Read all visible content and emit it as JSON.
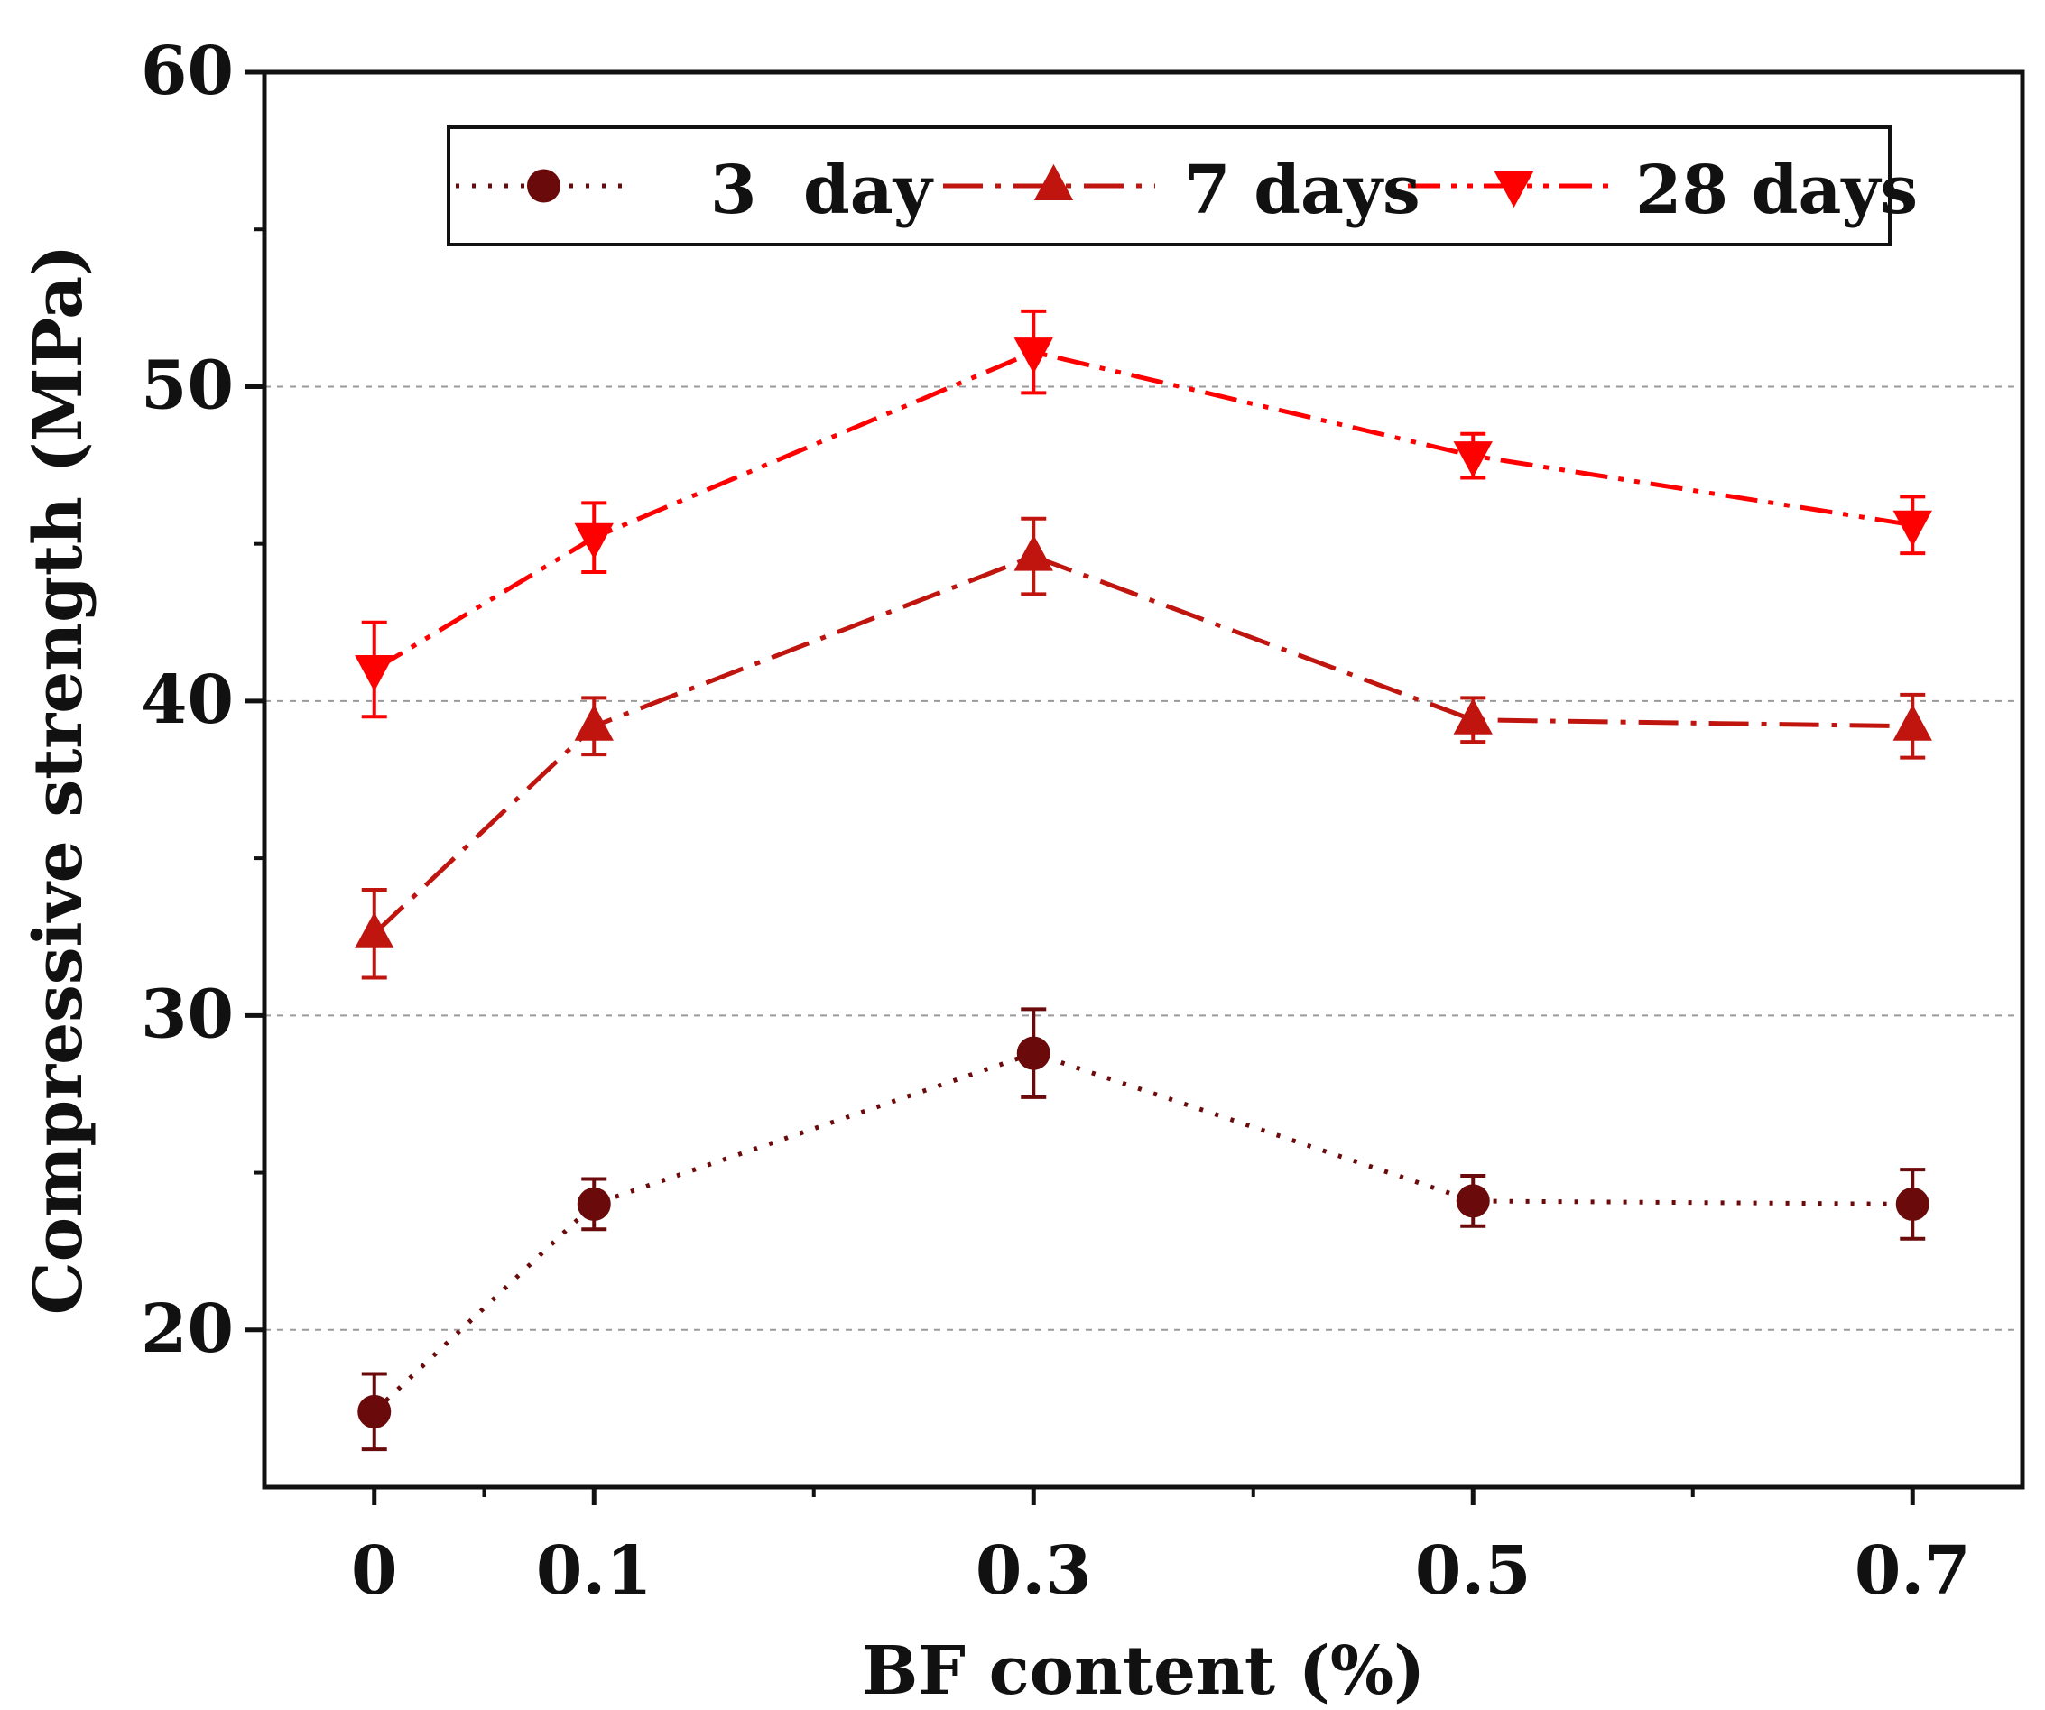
{
  "chart_data": {
    "type": "line",
    "title": "",
    "xlabel": "BF content (%)",
    "ylabel": "Compressive strength (MPa)",
    "x": [
      0,
      0.1,
      0.3,
      0.5,
      0.7
    ],
    "x_tick_labels": [
      "0",
      "0.1",
      "0.3",
      "0.5",
      "0.7"
    ],
    "xlim": [
      -0.05,
      0.75
    ],
    "ylim": [
      15,
      60
    ],
    "y_ticks": [
      20,
      30,
      40,
      50,
      60
    ],
    "y_tick_labels": [
      "20",
      "30",
      "40",
      "50",
      "60"
    ],
    "grid": "horizontal dashed at 20, 30, 40, 50",
    "legend_position": "top-center",
    "series": [
      {
        "name": "3  day",
        "marker": "circle",
        "line_style": "dotted",
        "color": "#6b0a0a",
        "values": [
          17.4,
          24.0,
          28.8,
          24.1,
          24.0
        ],
        "errors": [
          1.2,
          0.8,
          1.4,
          0.8,
          1.1
        ]
      },
      {
        "name": "7 days",
        "marker": "triangle-up",
        "line_style": "dash-dot",
        "color": "#c0150f",
        "values": [
          32.6,
          39.2,
          44.6,
          39.4,
          39.2
        ],
        "errors": [
          1.4,
          0.9,
          1.2,
          0.7,
          1.0
        ]
      },
      {
        "name": "28 days",
        "marker": "triangle-down",
        "line_style": "dash-dot-dot",
        "color": "#ff0000",
        "values": [
          41.0,
          45.2,
          51.1,
          47.8,
          45.6
        ],
        "errors": [
          1.5,
          1.1,
          1.3,
          0.7,
          0.9
        ]
      }
    ]
  }
}
